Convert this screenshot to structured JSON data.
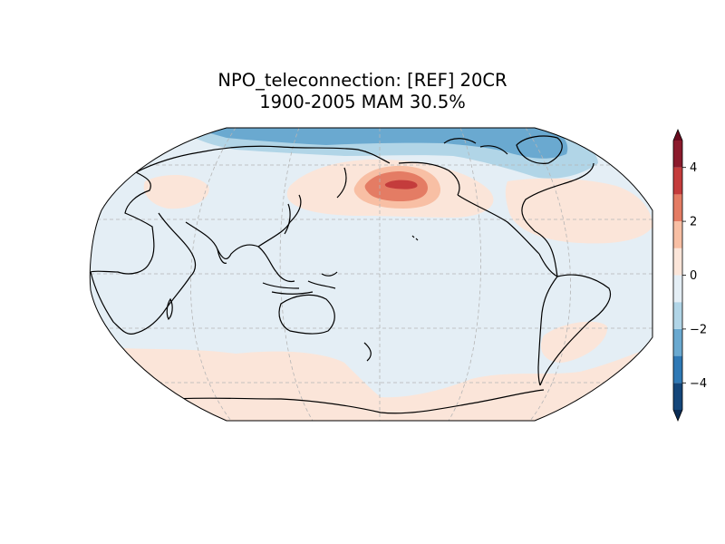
{
  "figure": {
    "title_line1": "NPO_teleconnection: [REF] 20CR",
    "title_line2": "1900-2005 MAM 30.5%"
  },
  "map": {
    "projection": "robinson",
    "central_longitude": 180,
    "gridlines": true,
    "coastlines": true,
    "anomaly_features": [
      {
        "name": "north-pacific-positive-center",
        "level_max": 4,
        "level_min": 1
      },
      {
        "name": "arctic-negative-band",
        "level_max": -1,
        "level_min": -3
      },
      {
        "name": "southern-ocean-positive-band",
        "level_max": 1,
        "level_min": 0
      },
      {
        "name": "north-america-positive-area",
        "level_max": 1,
        "level_min": 0
      }
    ]
  },
  "colorbar": {
    "levels": [
      -5,
      -4,
      -3,
      -2,
      -1,
      0,
      1,
      2,
      3,
      4,
      5
    ],
    "colors": [
      "#14467a",
      "#2f79b5",
      "#6aa9d0",
      "#b1d5e7",
      "#e4eef5",
      "#fbe5d9",
      "#f8bfa4",
      "#e47c64",
      "#c43c3c",
      "#8b1a2c"
    ],
    "extend_min_color": "#0a2c55",
    "extend_max_color": "#6a0d20",
    "ticks": [
      -4,
      -2,
      0,
      2,
      4
    ],
    "tick_labels": [
      "−4",
      "−2",
      "0",
      "2",
      "4"
    ]
  }
}
